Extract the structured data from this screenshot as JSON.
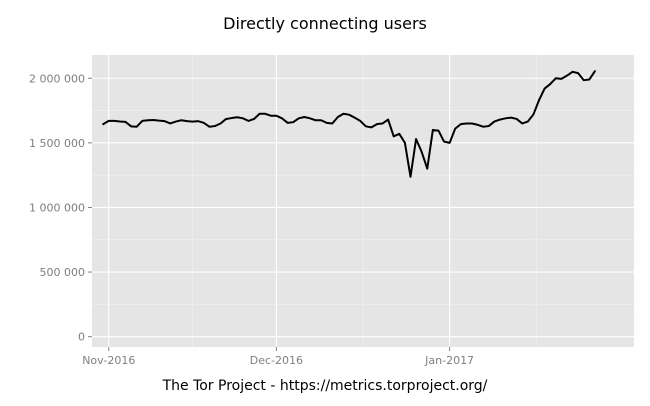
{
  "chart_data": {
    "type": "line",
    "title": "Directly connecting users",
    "caption": "The Tor Project - https://metrics.torproject.org/",
    "xlabel": "",
    "ylabel": "",
    "x_start": "2016-10-31",
    "x_end": "2017-01-30",
    "xlim": [
      "2016-10-29",
      "2017-02-03"
    ],
    "ylim": [
      -80000,
      2180000
    ],
    "x_ticks": [
      {
        "date": "2016-11-01",
        "label": "Nov-2016"
      },
      {
        "date": "2016-12-01",
        "label": "Dec-2016"
      },
      {
        "date": "2017-01-01",
        "label": "Jan-2017"
      }
    ],
    "y_ticks": [
      {
        "value": 0,
        "label": "0"
      },
      {
        "value": 500000,
        "label": "500 000"
      },
      {
        "value": 1000000,
        "label": "1 000 000"
      },
      {
        "value": 1500000,
        "label": "1 500 000"
      },
      {
        "value": 2000000,
        "label": "2 000 000"
      }
    ],
    "grid": true,
    "colors": {
      "panel": "#e5e5e5",
      "grid_major": "#ffffff",
      "grid_minor": "#f2f2f2",
      "line": "#000000"
    },
    "series": [
      {
        "values": [
          1645000,
          1670000,
          1670000,
          1665000,
          1662000,
          1628000,
          1625000,
          1670000,
          1675000,
          1677000,
          1672000,
          1668000,
          1650000,
          1665000,
          1675000,
          1668000,
          1664000,
          1668000,
          1655000,
          1625000,
          1630000,
          1650000,
          1685000,
          1692000,
          1698000,
          1690000,
          1670000,
          1685000,
          1725000,
          1725000,
          1710000,
          1710000,
          1690000,
          1655000,
          1660000,
          1690000,
          1700000,
          1690000,
          1675000,
          1675000,
          1655000,
          1650000,
          1700000,
          1725000,
          1718000,
          1695000,
          1670000,
          1628000,
          1620000,
          1645000,
          1650000,
          1680000,
          1550000,
          1570000,
          1500000,
          1238000,
          1530000,
          1430000,
          1300000,
          1600000,
          1595000,
          1510000,
          1500000,
          1610000,
          1645000,
          1650000,
          1650000,
          1640000,
          1625000,
          1630000,
          1665000,
          1680000,
          1690000,
          1695000,
          1685000,
          1650000,
          1665000,
          1720000,
          1830000,
          1920000,
          1955000,
          2000000,
          1995000,
          2020000,
          2050000,
          2040000,
          1985000,
          1990000,
          2055000
        ]
      }
    ]
  }
}
